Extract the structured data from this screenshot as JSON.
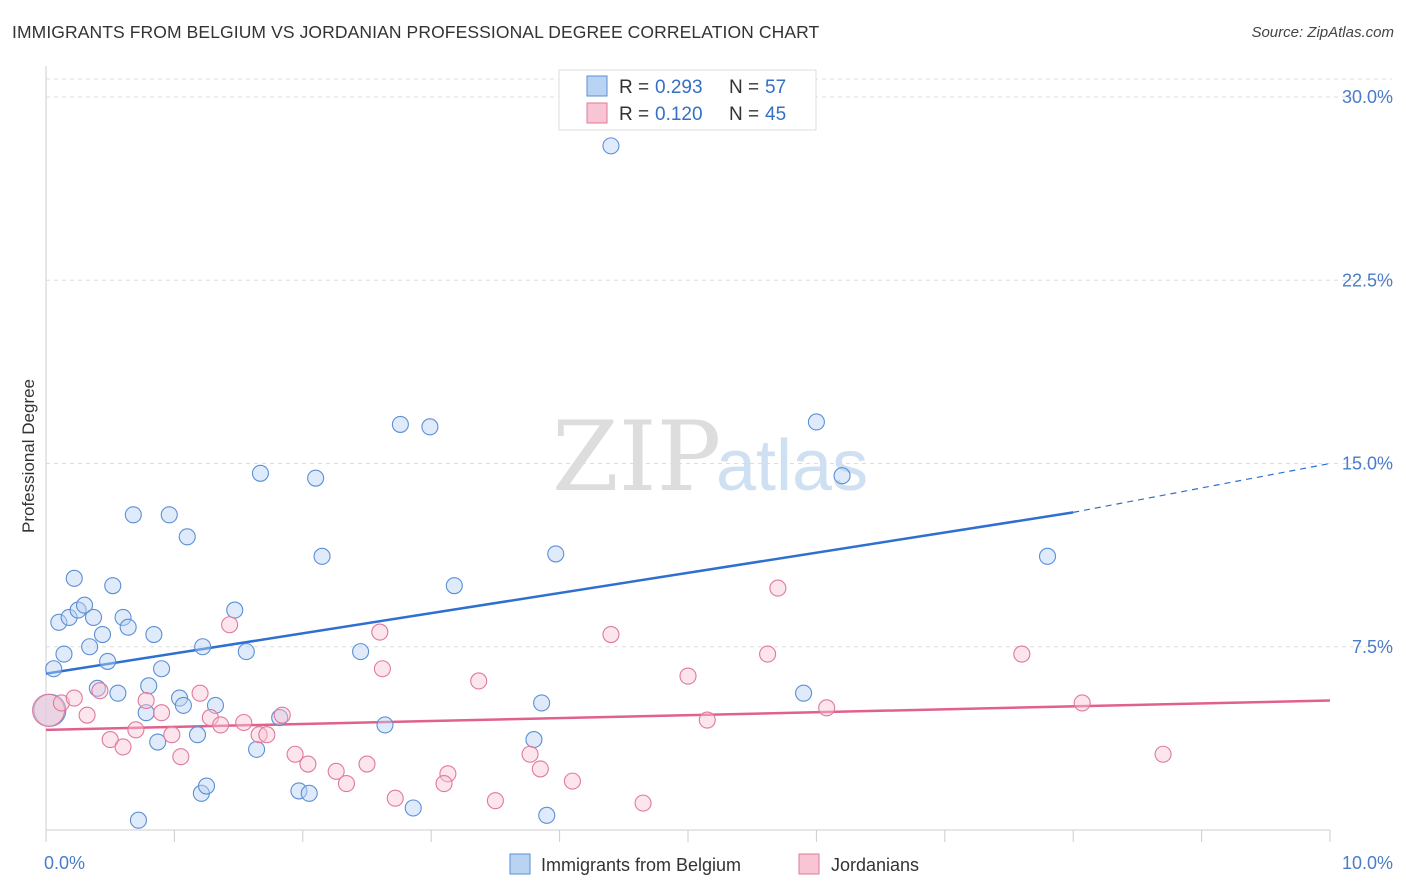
{
  "header": {
    "title": "IMMIGRANTS FROM BELGIUM VS JORDANIAN PROFESSIONAL DEGREE CORRELATION CHART",
    "source": "Source: ZipAtlas.com"
  },
  "watermark": {
    "zip": "ZIP",
    "atlas": "atlas"
  },
  "legend_top": [
    {
      "r_label": "R = ",
      "r_value": "0.293",
      "n_label": "N = ",
      "n_value": "57"
    },
    {
      "r_label": "R = ",
      "r_value": "0.120",
      "n_label": "N = ",
      "n_value": "45"
    }
  ],
  "colors": {
    "belgium_fill": "#b9d3f3",
    "belgium_stroke": "#5b8fd6",
    "belgium_line": "#2f6fd0",
    "jordan_fill": "#f8c5d4",
    "jordan_stroke": "#e07a9a",
    "jordan_line": "#e0608e",
    "grid": "#dddddd",
    "axis_text": "#4a7cc9"
  },
  "chart_data": {
    "type": "scatter",
    "title": "IMMIGRANTS FROM BELGIUM VS JORDANIAN PROFESSIONAL DEGREE CORRELATION CHART",
    "xlabel": "",
    "ylabel": "Professional Degree",
    "xlim": [
      0,
      10
    ],
    "ylim": [
      0,
      30
    ],
    "x_tick_labels": [
      {
        "value": 0,
        "label": "0.0%"
      },
      {
        "value": 10,
        "label": "10.0%"
      }
    ],
    "y_tick_labels": [
      {
        "value": 7.5,
        "label": "7.5%"
      },
      {
        "value": 15,
        "label": "15.0%"
      },
      {
        "value": 22.5,
        "label": "22.5%"
      },
      {
        "value": 30,
        "label": "30.0%"
      }
    ],
    "series": [
      {
        "name": "Immigrants from Belgium",
        "R": 0.293,
        "N": 57,
        "trend": {
          "x0": 0,
          "y0": 6.4,
          "x1": 8.0,
          "y1": 13.0,
          "dashed_to_x": 10.0,
          "dashed_to_y": 15.0
        },
        "points": [
          [
            0.03,
            4.9
          ],
          [
            0.06,
            6.6
          ],
          [
            0.1,
            8.5
          ],
          [
            0.14,
            7.2
          ],
          [
            0.18,
            8.7
          ],
          [
            0.22,
            10.3
          ],
          [
            0.25,
            9.0
          ],
          [
            0.3,
            9.2
          ],
          [
            0.34,
            7.5
          ],
          [
            0.37,
            8.7
          ],
          [
            0.4,
            5.8
          ],
          [
            0.44,
            8.0
          ],
          [
            0.48,
            6.9
          ],
          [
            0.52,
            10.0
          ],
          [
            0.56,
            5.6
          ],
          [
            0.6,
            8.7
          ],
          [
            0.64,
            8.3
          ],
          [
            0.68,
            12.9
          ],
          [
            0.72,
            0.4
          ],
          [
            0.78,
            4.8
          ],
          [
            0.8,
            5.9
          ],
          [
            0.84,
            8.0
          ],
          [
            0.87,
            3.6
          ],
          [
            0.9,
            6.6
          ],
          [
            0.96,
            12.9
          ],
          [
            1.04,
            5.4
          ],
          [
            1.07,
            5.1
          ],
          [
            1.1,
            12.0
          ],
          [
            1.18,
            3.9
          ],
          [
            1.21,
            1.5
          ],
          [
            1.25,
            1.8
          ],
          [
            1.22,
            7.5
          ],
          [
            1.32,
            5.1
          ],
          [
            1.47,
            9.0
          ],
          [
            1.56,
            7.3
          ],
          [
            1.64,
            3.3
          ],
          [
            1.67,
            14.6
          ],
          [
            1.82,
            4.6
          ],
          [
            1.97,
            1.6
          ],
          [
            2.05,
            1.5
          ],
          [
            2.1,
            14.4
          ],
          [
            2.15,
            11.2
          ],
          [
            2.45,
            7.3
          ],
          [
            2.64,
            4.3
          ],
          [
            2.76,
            16.6
          ],
          [
            2.86,
            0.9
          ],
          [
            2.99,
            16.5
          ],
          [
            3.18,
            10.0
          ],
          [
            3.8,
            3.7
          ],
          [
            3.86,
            5.2
          ],
          [
            3.9,
            0.6
          ],
          [
            3.97,
            11.3
          ],
          [
            4.4,
            28.0
          ],
          [
            5.9,
            5.6
          ],
          [
            6.0,
            16.7
          ],
          [
            6.2,
            14.5
          ],
          [
            7.8,
            11.2
          ]
        ]
      },
      {
        "name": "Jordanians",
        "R": 0.12,
        "N": 45,
        "trend": {
          "x0": 0,
          "y0": 4.1,
          "x1": 10.0,
          "y1": 5.3
        },
        "points": [
          [
            0.02,
            4.9
          ],
          [
            0.12,
            5.2
          ],
          [
            0.22,
            5.4
          ],
          [
            0.32,
            4.7
          ],
          [
            0.42,
            5.7
          ],
          [
            0.5,
            3.7
          ],
          [
            0.6,
            3.4
          ],
          [
            0.7,
            4.1
          ],
          [
            0.78,
            5.3
          ],
          [
            0.9,
            4.8
          ],
          [
            0.98,
            3.9
          ],
          [
            1.05,
            3.0
          ],
          [
            1.2,
            5.6
          ],
          [
            1.28,
            4.6
          ],
          [
            1.36,
            4.3
          ],
          [
            1.43,
            8.4
          ],
          [
            1.54,
            4.4
          ],
          [
            1.66,
            3.9
          ],
          [
            1.72,
            3.9
          ],
          [
            1.84,
            4.7
          ],
          [
            1.94,
            3.1
          ],
          [
            2.04,
            2.7
          ],
          [
            2.26,
            2.4
          ],
          [
            2.34,
            1.9
          ],
          [
            2.5,
            2.7
          ],
          [
            2.6,
            8.1
          ],
          [
            2.62,
            6.6
          ],
          [
            2.72,
            1.3
          ],
          [
            3.13,
            2.3
          ],
          [
            3.1,
            1.9
          ],
          [
            3.37,
            6.1
          ],
          [
            3.5,
            1.2
          ],
          [
            3.77,
            3.1
          ],
          [
            3.85,
            2.5
          ],
          [
            4.1,
            2.0
          ],
          [
            4.4,
            8.0
          ],
          [
            4.65,
            1.1
          ],
          [
            5.0,
            6.3
          ],
          [
            5.15,
            4.5
          ],
          [
            5.62,
            7.2
          ],
          [
            5.7,
            9.9
          ],
          [
            6.08,
            5.0
          ],
          [
            7.6,
            7.2
          ],
          [
            8.07,
            5.2
          ],
          [
            8.7,
            3.1
          ]
        ]
      }
    ]
  }
}
